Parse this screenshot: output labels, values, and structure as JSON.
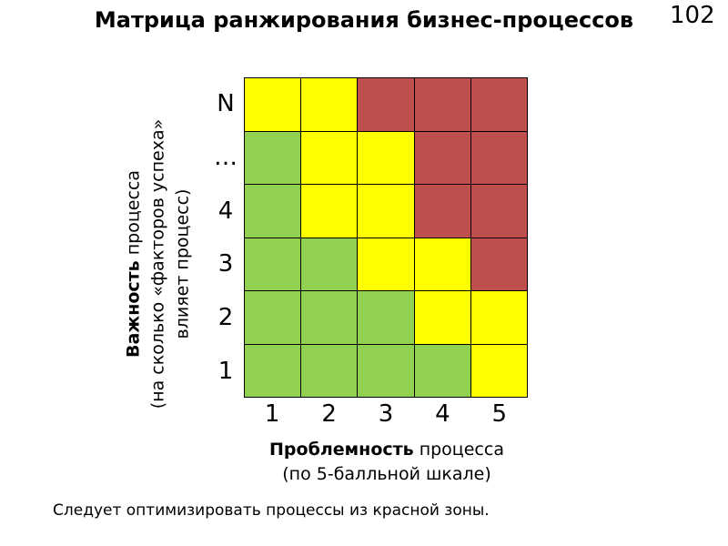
{
  "slide": {
    "title": "Матрица ранжирования бизнес-процессов",
    "page_number": "102",
    "footnote": "Следует оптимизировать процессы из красной зоны."
  },
  "axes": {
    "y": {
      "title_bold": "Важность",
      "title_rest": " процесса",
      "line2": "(на сколько «факторов успеха»",
      "line3": "влияет процесс)"
    },
    "x": {
      "title_bold": "Проблемность",
      "title_rest": " процесса",
      "line2": "(по 5-балльной шкале)"
    }
  },
  "matrix": {
    "row_labels": [
      "N",
      "…",
      "4",
      "3",
      "2",
      "1"
    ],
    "col_labels": [
      "1",
      "2",
      "3",
      "4",
      "5"
    ],
    "colors": {
      "green": "#92d050",
      "yellow": "#ffff00",
      "red": "#c0504d"
    },
    "zones": [
      [
        "yellow",
        "yellow",
        "red",
        "red",
        "red"
      ],
      [
        "green",
        "yellow",
        "yellow",
        "red",
        "red"
      ],
      [
        "green",
        "yellow",
        "yellow",
        "red",
        "red"
      ],
      [
        "green",
        "green",
        "yellow",
        "yellow",
        "red"
      ],
      [
        "green",
        "green",
        "green",
        "yellow",
        "yellow"
      ],
      [
        "green",
        "green",
        "green",
        "green",
        "yellow"
      ]
    ]
  }
}
